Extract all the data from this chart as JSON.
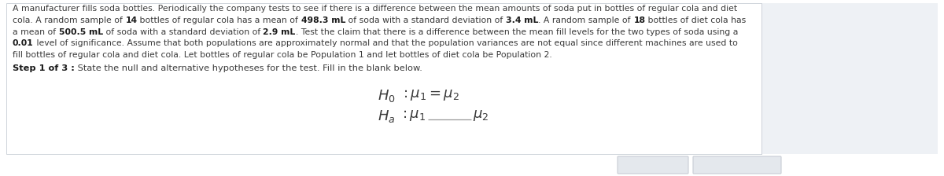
{
  "bg_color": "#ffffff",
  "panel_bg": "#eef1f5",
  "text_color": "#3a3a3a",
  "bold_color": "#1a1a1a",
  "line_color": "#999999",
  "button_bg": "#e4e8ed",
  "button_border": "#c8cdd4",
  "figwidth": 12.0,
  "figheight": 2.24,
  "dpi": 100,
  "line1": "A manufacturer fills soda bottles. Periodically the company tests to see if there is a difference between the mean amounts of soda put in bottles of regular cola and diet",
  "line2_normal1": "cola. A random sample of ",
  "line2_bold1": "14",
  "line2_normal2": " bottles of regular cola has a mean of ",
  "line2_bold2": "498.3 mL",
  "line2_normal3": " of soda with a standard deviation of ",
  "line2_bold3": "3.4 mL",
  "line2_normal4": ". A random sample of ",
  "line2_bold4": "18",
  "line2_normal5": " bottles of diet cola has",
  "line3_normal1": "a mean of ",
  "line3_bold1": "500.5 mL",
  "line3_normal2": " of soda with a standard deviation of ",
  "line3_bold2": "2.9 mL",
  "line3_normal3": ". Test the claim that there is a difference between the mean fill levels for the two types of soda using a",
  "line4_bold1": "0.01",
  "line4_normal1": " level of significance. Assume that both populations are approximately normal and that the population variances are not equal since different machines are used to",
  "line5": "fill bottles of regular cola and diet cola. Let bottles of regular cola be Population 1 and let bottles of diet cola be Population 2.",
  "step_bold": "Step 1 of 3 :",
  "step_normal": " State the null and alternative hypotheses for the test. Fill in the blank below.",
  "body_fontsize": 7.8,
  "step_fontsize": 8.2,
  "hyp_fontsize": 13
}
